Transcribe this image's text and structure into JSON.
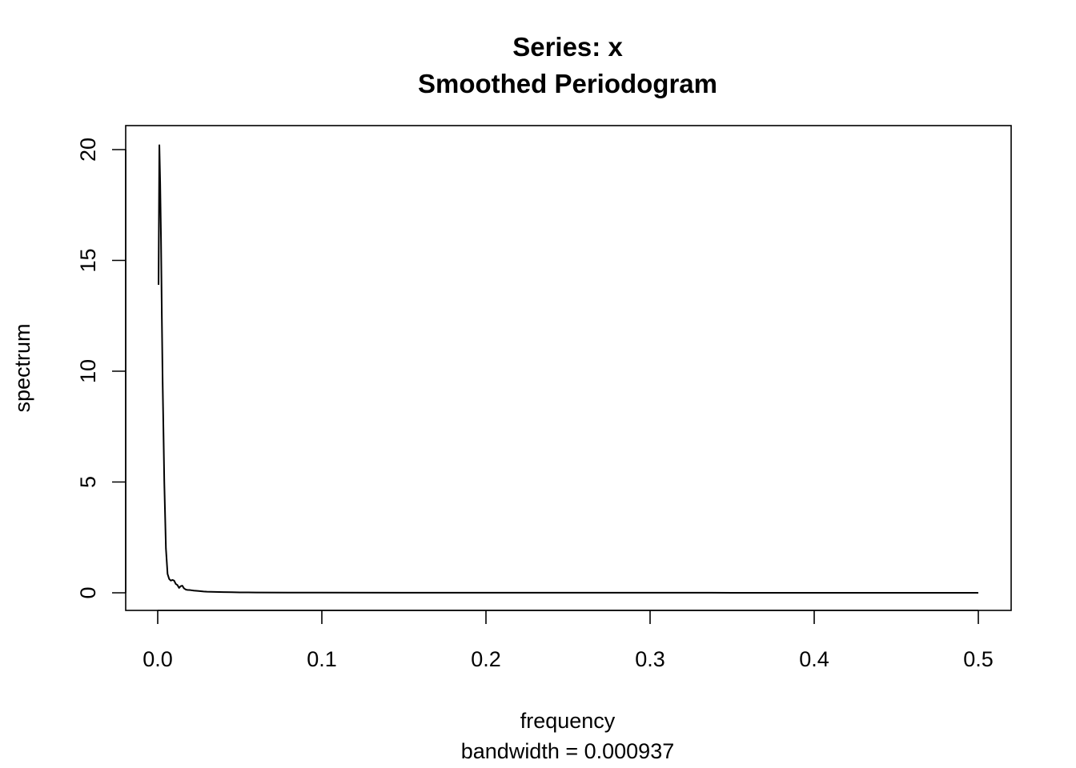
{
  "chart_data": {
    "type": "line",
    "title": "Series: x",
    "subtitle": "Smoothed Periodogram",
    "xlabel": "frequency",
    "xsublabel": "bandwidth = 0.000937",
    "ylabel": "spectrum",
    "xlim": [
      0.0,
      0.5
    ],
    "ylim": [
      0,
      20
    ],
    "xticks": [
      "0.0",
      "0.1",
      "0.2",
      "0.3",
      "0.4",
      "0.5"
    ],
    "yticks": [
      "0",
      "5",
      "10",
      "15",
      "20"
    ],
    "grid": false,
    "series": [
      {
        "color": "#000000",
        "x": [
          0.0005,
          0.001,
          0.0015,
          0.002,
          0.0025,
          0.003,
          0.004,
          0.005,
          0.006,
          0.007,
          0.008,
          0.009,
          0.01,
          0.011,
          0.012,
          0.013,
          0.014,
          0.015,
          0.016,
          0.017,
          0.018,
          0.02,
          0.022,
          0.025,
          0.028,
          0.03,
          0.035,
          0.04,
          0.045,
          0.05,
          0.055,
          0.06,
          0.08,
          0.1,
          0.15,
          0.2,
          0.25,
          0.3,
          0.35,
          0.4,
          0.45,
          0.5
        ],
        "y": [
          13.9,
          20.2,
          18.5,
          16.0,
          12.5,
          9.5,
          5.0,
          2.0,
          0.85,
          0.62,
          0.55,
          0.58,
          0.55,
          0.4,
          0.35,
          0.22,
          0.3,
          0.32,
          0.2,
          0.15,
          0.13,
          0.12,
          0.1,
          0.08,
          0.06,
          0.05,
          0.04,
          0.03,
          0.025,
          0.02,
          0.02,
          0.015,
          0.01,
          0.008,
          0.005,
          0.004,
          0.003,
          0.003,
          0.002,
          0.002,
          0.002,
          0.002
        ]
      }
    ]
  }
}
